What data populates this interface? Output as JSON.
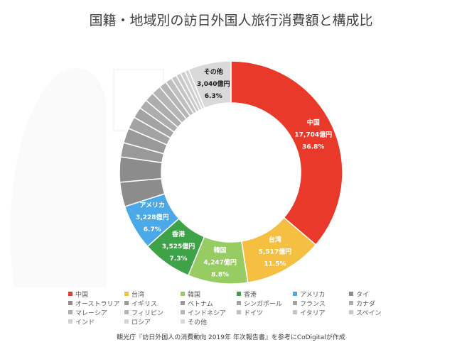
{
  "chart_data": {
    "type": "donut",
    "title": "国籍・地域別の訪日外国人旅行消費額と構成比",
    "source": "観光庁『訪日外国人の消費動向 2019年 年次報告書』を参考にCoDigitalが作成",
    "unit": "億円",
    "series": [
      {
        "name": "中国",
        "value": 17704,
        "percent": 36.8,
        "color": "#E8392A",
        "value_label": "17,704億円",
        "percent_label": "36.8%"
      },
      {
        "name": "台湾",
        "value": 5517,
        "percent": 11.5,
        "color": "#F5BF42",
        "value_label": "5,517億円",
        "percent_label": "11.5%"
      },
      {
        "name": "韓国",
        "value": 4247,
        "percent": 8.8,
        "color": "#97CC62",
        "value_label": "4,247億円",
        "percent_label": "8.8%"
      },
      {
        "name": "香港",
        "value": 3525,
        "percent": 7.3,
        "color": "#3EA248",
        "value_label": "3,525億円",
        "percent_label": "7.3%"
      },
      {
        "name": "アメリカ",
        "value": 3228,
        "percent": 6.7,
        "color": "#4CA9E8",
        "value_label": "3,228億円",
        "percent_label": "6.7%"
      },
      {
        "name": "タイ",
        "percent": 3.6,
        "color": "#8C8C8C"
      },
      {
        "name": "オーストラリア",
        "percent": 3.7,
        "color": "#8C8C8C"
      },
      {
        "name": "イギリス",
        "percent": 2.1,
        "color": "#999999"
      },
      {
        "name": "ベトナム",
        "percent": 2.2,
        "color": "#999999"
      },
      {
        "name": "シンガポール",
        "percent": 1.8,
        "color": "#A3A3A3"
      },
      {
        "name": "フランス",
        "percent": 1.6,
        "color": "#A3A3A3"
      },
      {
        "name": "カナダ",
        "percent": 1.4,
        "color": "#ADADAD"
      },
      {
        "name": "マレーシア",
        "percent": 1.4,
        "color": "#ADADAD"
      },
      {
        "name": "フィリピン",
        "percent": 1.4,
        "color": "#B5B5B5"
      },
      {
        "name": "インドネシア",
        "percent": 1.1,
        "color": "#B5B5B5"
      },
      {
        "name": "ドイツ",
        "percent": 1.0,
        "color": "#BFBFBF"
      },
      {
        "name": "イタリア",
        "percent": 0.8,
        "color": "#C4C4C4"
      },
      {
        "name": "スペイン",
        "percent": 0.7,
        "color": "#C9C9C9"
      },
      {
        "name": "インド",
        "percent": 0.7,
        "color": "#CFCFCF"
      },
      {
        "name": "ロシア",
        "percent": 0.6,
        "color": "#D4D4D4"
      },
      {
        "name": "その他",
        "value": 3040,
        "percent": 6.3,
        "color": "#D9D9D9",
        "value_label": "3,040億円",
        "percent_label": "6.3%"
      }
    ]
  }
}
